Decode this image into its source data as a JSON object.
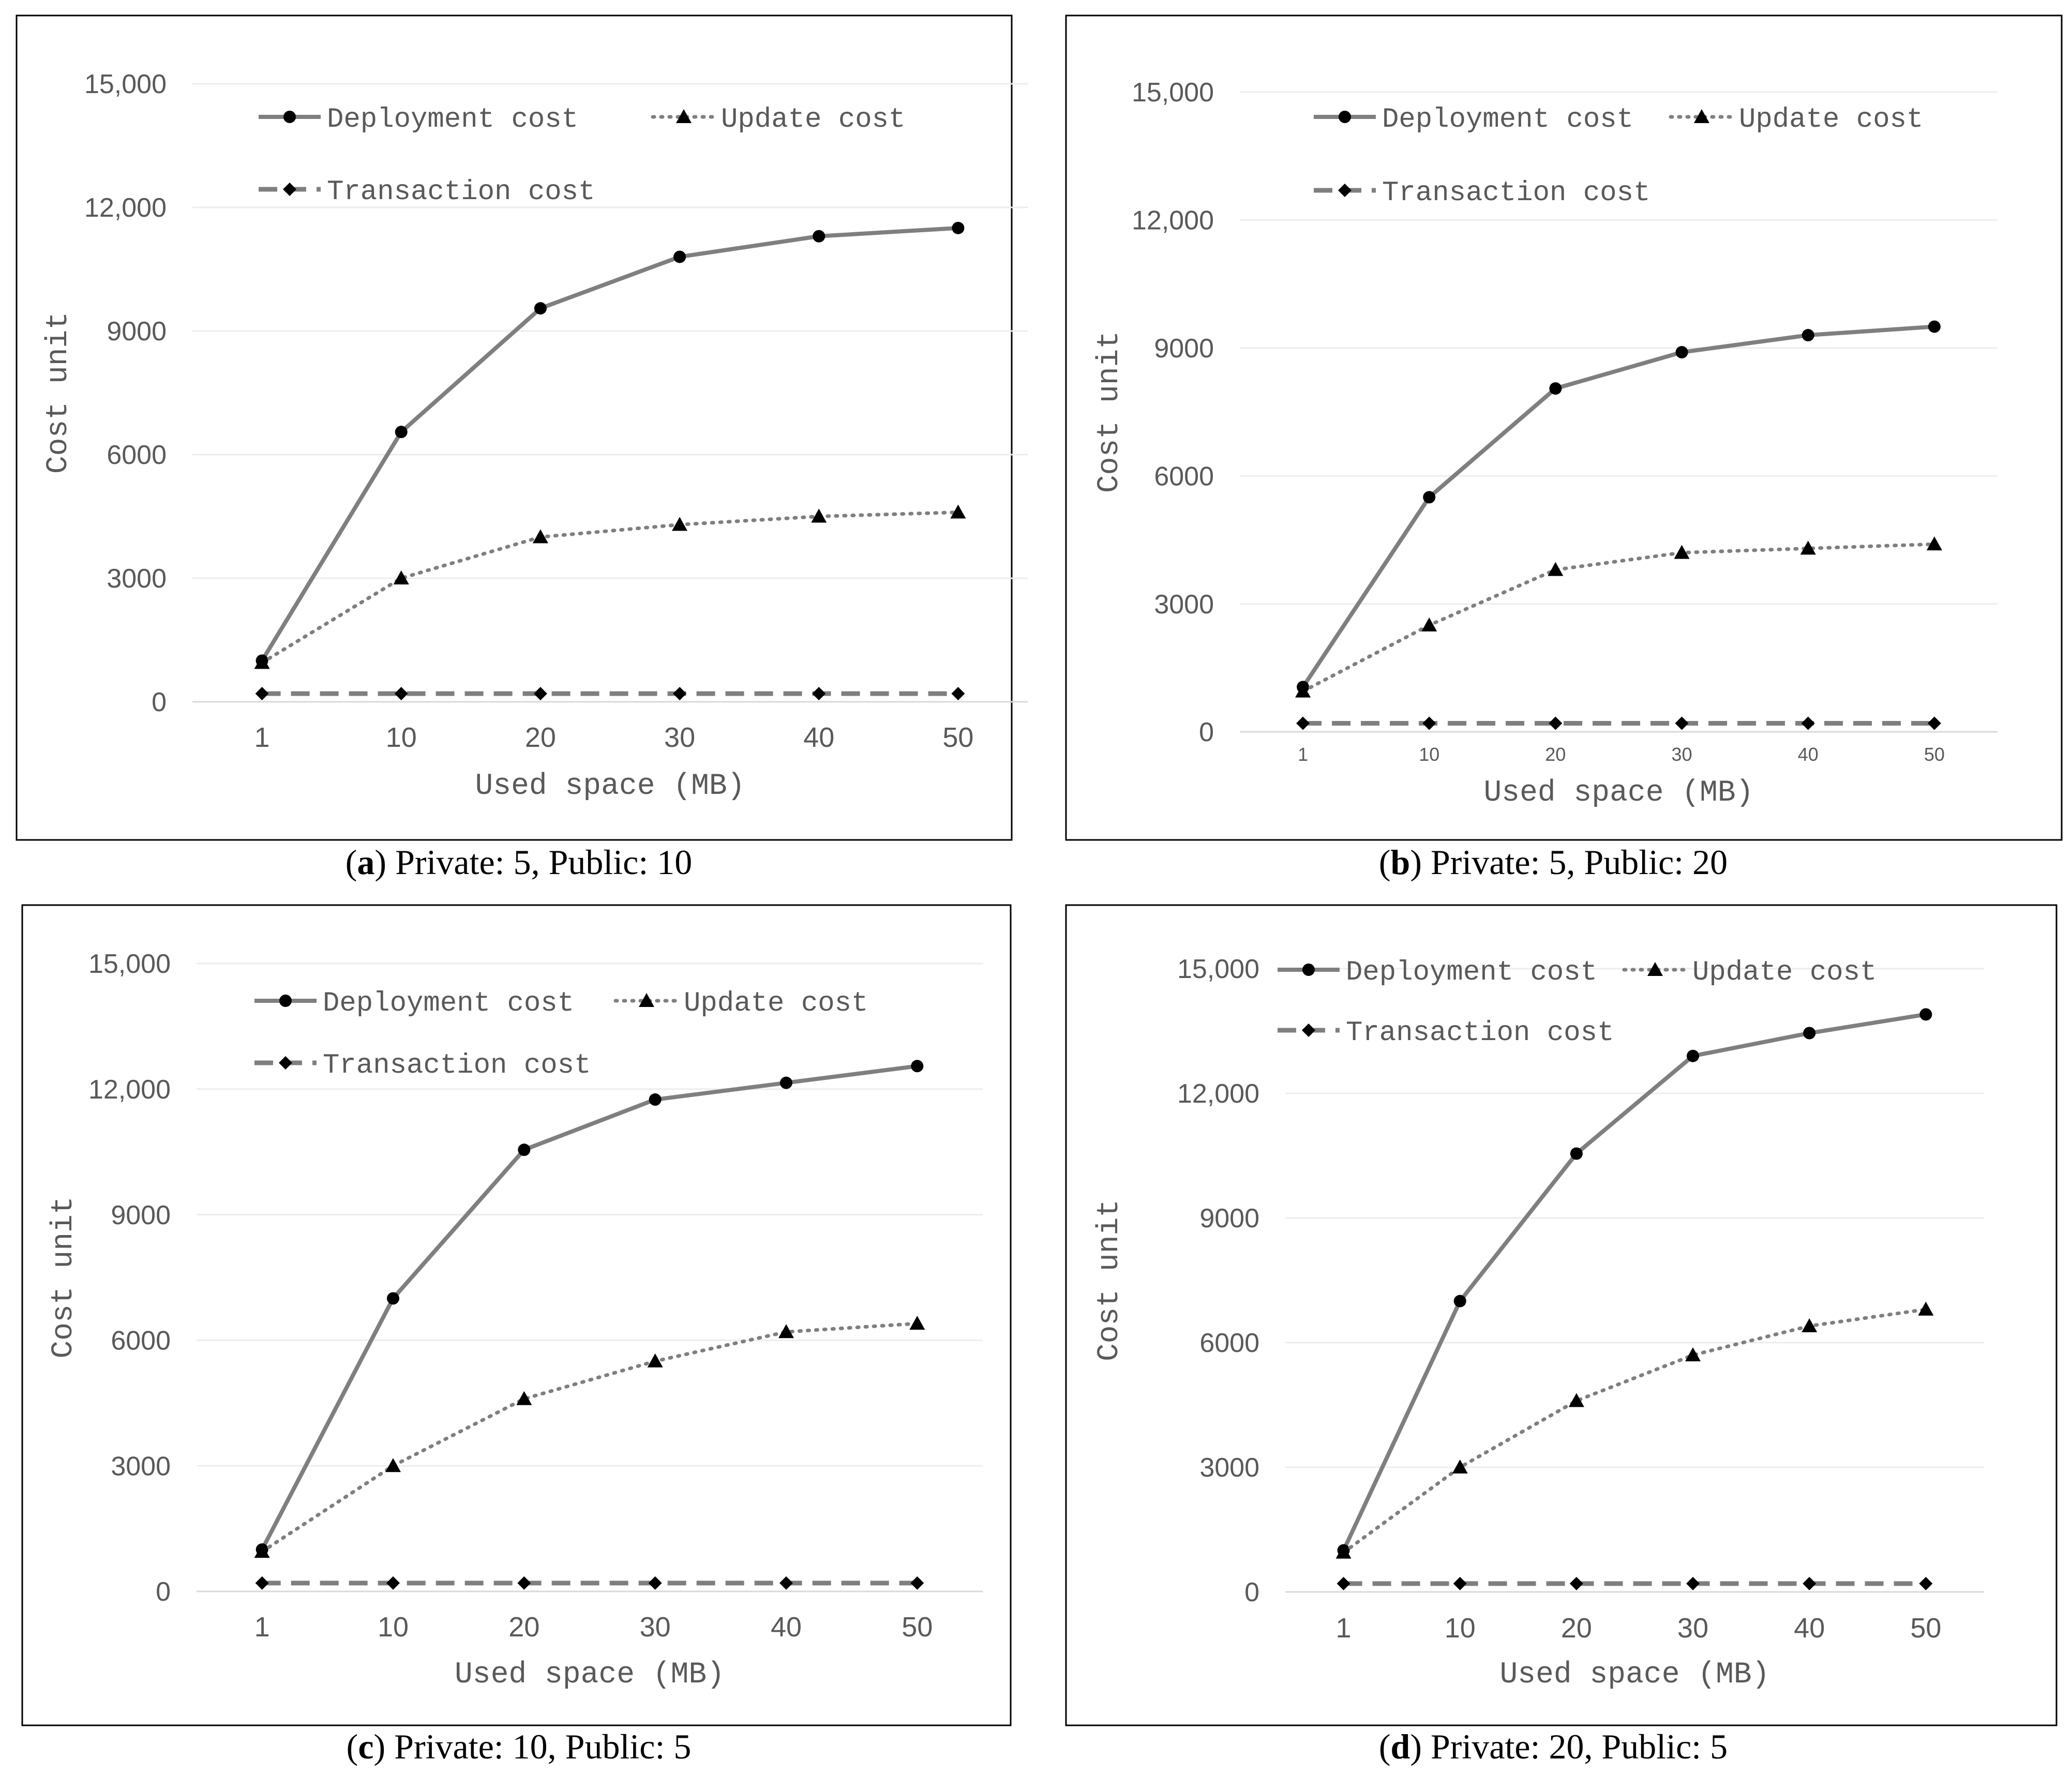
{
  "figure": {
    "series_names": [
      "Deployment cost",
      "Update cost",
      "Transaction cost"
    ]
  },
  "colors": {
    "line": "#7f7f7f",
    "marker": "#000000",
    "grid": "#ededed",
    "frame": "#000000",
    "tick_text": "#595959"
  },
  "chart_data": [
    {
      "id": "a",
      "type": "line",
      "caption_letter": "a",
      "caption_text": "Private: 5, Public: 10",
      "categories": [
        "1",
        "10",
        "20",
        "30",
        "40",
        "50"
      ],
      "xlabel": "Used space (MB)",
      "ylabel": "Cost unit",
      "ylim": [
        0,
        15000
      ],
      "yticks": [
        0,
        3000,
        6000,
        9000,
        12000,
        15000
      ],
      "ytick_labels": [
        "0",
        "3000",
        "6000",
        "9000",
        "12,000",
        "15,000"
      ],
      "grid": true,
      "legend_position": "top",
      "series": [
        {
          "name": "Deployment cost",
          "marker": "circle",
          "style": "solid",
          "values": [
            1000,
            6550,
            9550,
            10800,
            11300,
            11500
          ]
        },
        {
          "name": "Update cost",
          "marker": "triangle",
          "style": "dotted",
          "values": [
            950,
            3000,
            4000,
            4300,
            4500,
            4600
          ]
        },
        {
          "name": "Transaction cost",
          "marker": "diamond",
          "style": "dashed",
          "values": [
            200,
            200,
            200,
            200,
            200,
            200
          ]
        }
      ]
    },
    {
      "id": "b",
      "type": "line",
      "caption_letter": "b",
      "caption_text": "Private: 5, Public: 20",
      "categories": [
        "1",
        "10",
        "20",
        "30",
        "40",
        "50"
      ],
      "xlabel": "Used space (MB)",
      "ylabel": "Cost unit",
      "ylim": [
        0,
        15000
      ],
      "yticks": [
        0,
        3000,
        6000,
        9000,
        12000,
        15000
      ],
      "ytick_labels": [
        "0",
        "3000",
        "6000",
        "9000",
        "12,000",
        "15,000"
      ],
      "grid": true,
      "legend_position": "top",
      "series": [
        {
          "name": "Deployment cost",
          "marker": "circle",
          "style": "solid",
          "values": [
            1050,
            5500,
            8050,
            8900,
            9300,
            9500
          ]
        },
        {
          "name": "Update cost",
          "marker": "triangle",
          "style": "dotted",
          "values": [
            950,
            2500,
            3800,
            4200,
            4300,
            4400
          ]
        },
        {
          "name": "Transaction cost",
          "marker": "diamond",
          "style": "dashed",
          "values": [
            200,
            200,
            200,
            200,
            200,
            200
          ]
        }
      ]
    },
    {
      "id": "c",
      "type": "line",
      "caption_letter": "c",
      "caption_text": "Private: 10, Public: 5",
      "categories": [
        "1",
        "10",
        "20",
        "30",
        "40",
        "50"
      ],
      "xlabel": "Used space (MB)",
      "ylabel": "Cost unit",
      "ylim": [
        0,
        15000
      ],
      "yticks": [
        0,
        3000,
        6000,
        9000,
        12000,
        15000
      ],
      "ytick_labels": [
        "0",
        "3000",
        "6000",
        "9000",
        "12,000",
        "15,000"
      ],
      "grid": true,
      "legend_position": "top",
      "series": [
        {
          "name": "Deployment cost",
          "marker": "circle",
          "style": "solid",
          "values": [
            1000,
            7000,
            10550,
            11750,
            12150,
            12550
          ]
        },
        {
          "name": "Update cost",
          "marker": "triangle",
          "style": "dotted",
          "values": [
            950,
            3000,
            4600,
            5500,
            6200,
            6400
          ]
        },
        {
          "name": "Transaction cost",
          "marker": "diamond",
          "style": "dashed",
          "values": [
            200,
            200,
            200,
            200,
            200,
            200
          ]
        }
      ]
    },
    {
      "id": "d",
      "type": "line",
      "caption_letter": "d",
      "caption_text": "Private: 20, Public: 5",
      "categories": [
        "1",
        "10",
        "20",
        "30",
        "40",
        "50"
      ],
      "xlabel": "Used space (MB)",
      "ylabel": "Cost unit",
      "ylim": [
        0,
        15000
      ],
      "yticks": [
        0,
        3000,
        6000,
        9000,
        12000,
        15000
      ],
      "ytick_labels": [
        "0",
        "3000",
        "6000",
        "9000",
        "12,000",
        "15,000"
      ],
      "grid": true,
      "legend_position": "top",
      "series": [
        {
          "name": "Deployment cost",
          "marker": "circle",
          "style": "solid",
          "values": [
            1000,
            7000,
            10550,
            12900,
            13450,
            13900
          ]
        },
        {
          "name": "Update cost",
          "marker": "triangle",
          "style": "dotted",
          "values": [
            950,
            3000,
            4600,
            5700,
            6400,
            6800
          ]
        },
        {
          "name": "Transaction cost",
          "marker": "diamond",
          "style": "dashed",
          "values": [
            200,
            200,
            200,
            200,
            200,
            200
          ]
        }
      ]
    }
  ]
}
